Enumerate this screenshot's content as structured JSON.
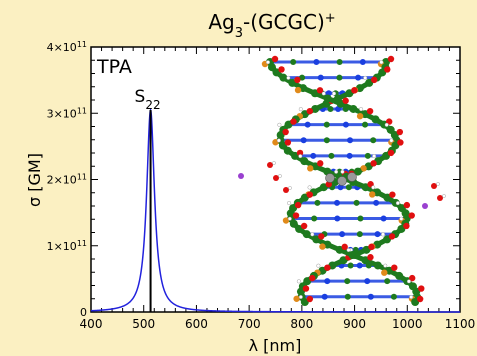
{
  "chart_data": {
    "type": "line",
    "title": "Ag3-(GCGC)+",
    "title_parts": {
      "base": "Ag",
      "sub": "3",
      "middle": "-(GCGC)",
      "sup": "+"
    },
    "xlabel": "λ [nm]",
    "ylabel": "σ [GM]",
    "xlim": [
      400,
      1100
    ],
    "ylim": [
      0,
      400000000000.0
    ],
    "x_ticks": [
      400,
      500,
      600,
      700,
      800,
      900,
      1000,
      1100
    ],
    "x_tick_labels": [
      "400",
      "500",
      "600",
      "700",
      "800",
      "900",
      "1000",
      "1100"
    ],
    "y_ticks": [
      0,
      100000000000.0,
      200000000000.0,
      300000000000.0,
      400000000000.0
    ],
    "y_tick_labels": [
      {
        "mant": "0",
        "exp": ""
      },
      {
        "mant": "1×10",
        "exp": "11"
      },
      {
        "mant": "2×10",
        "exp": "11"
      },
      {
        "mant": "3×10",
        "exp": "11"
      },
      {
        "mant": "4×10",
        "exp": "11"
      }
    ],
    "grid": false,
    "inset_label": "TPA",
    "series": [
      {
        "color": "#2222dd",
        "shape": "lorentzian",
        "center": 513,
        "peak": 305000000000.0,
        "half_width": 9
      }
    ],
    "stick": {
      "x": 513,
      "y": 305000000000.0,
      "color": "#000000"
    },
    "peak_label": {
      "base": "S",
      "sub": "22",
      "x": 513
    }
  },
  "colors": {
    "background": "#fbf0c2",
    "plot_background": "#ffffff",
    "axis": "#000000",
    "series": "#2222dd",
    "dna_backbone": "#1e7a1e",
    "dna_oxygen": "#e01010",
    "dna_nitrogen": "#1a3fe0",
    "dna_phosphorus": "#e08a1a",
    "dna_hydrogen": "#ffffff",
    "silver_cluster": "#9a9a9a",
    "sodium_ion": "#9a40d0"
  },
  "inset_image": {
    "icon": "dna-double-helix-with-ag3-cluster-icon"
  }
}
